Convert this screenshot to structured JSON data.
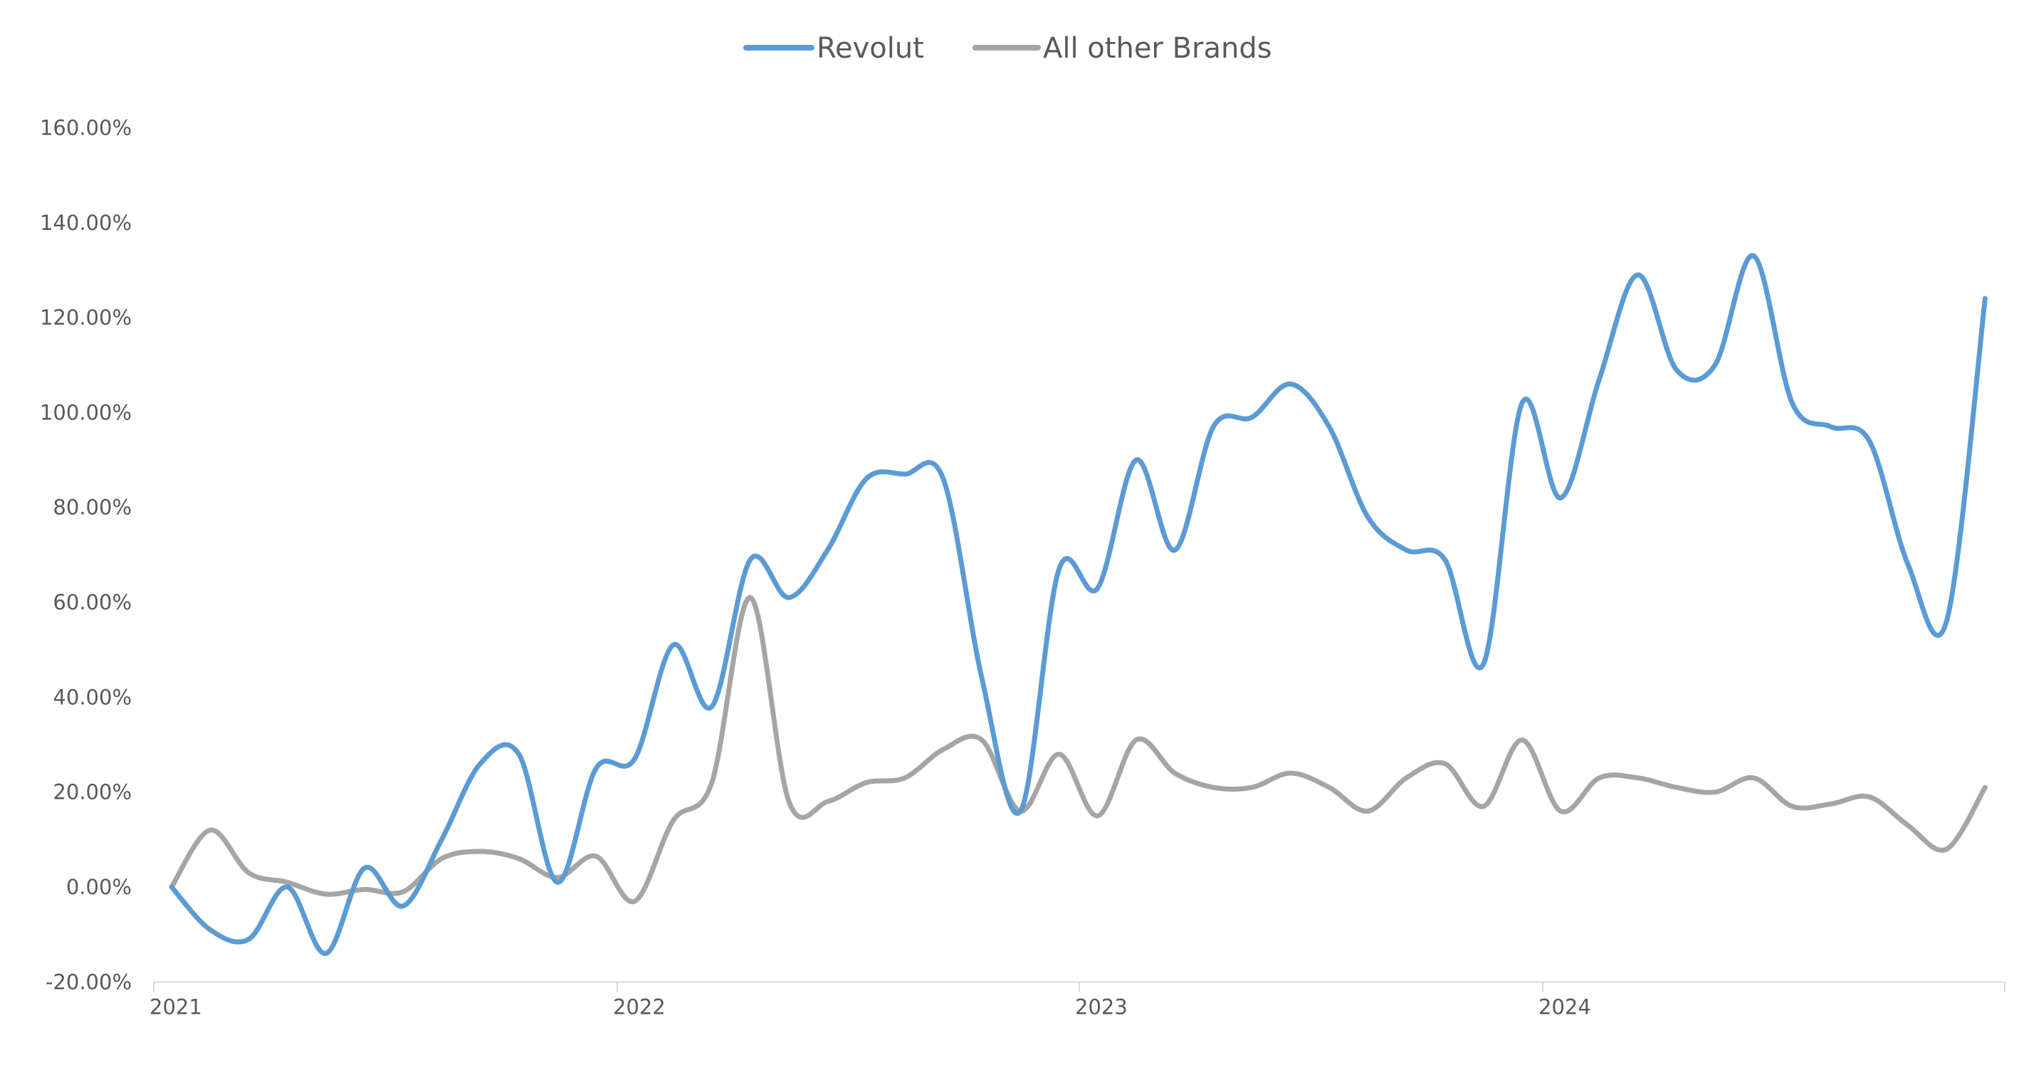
{
  "chart_data": {
    "type": "line",
    "title": "",
    "xlabel": "",
    "ylabel": "",
    "legend_position": "top",
    "grid": false,
    "ylim": [
      -20,
      160
    ],
    "y_ticks": [
      "-20.00%",
      "0.00%",
      "20.00%",
      "40.00%",
      "60.00%",
      "80.00%",
      "100.00%",
      "120.00%",
      "140.00%",
      "160.00%"
    ],
    "x_ticks": [
      "2021",
      "2022",
      "2023",
      "2024"
    ],
    "x_start": "2021-01",
    "x_frequency": "monthly",
    "series": [
      {
        "name": "Revolut",
        "color": "#5B9BD5",
        "values": [
          0,
          -9,
          -11,
          0,
          -14,
          4,
          -4,
          10,
          26,
          28,
          1,
          25,
          27,
          51,
          38,
          69,
          61,
          71,
          86,
          87,
          86,
          44,
          16,
          67,
          63,
          90,
          71,
          97,
          99,
          106,
          97,
          78,
          71,
          69,
          47,
          102,
          82,
          107,
          129,
          109,
          110,
          133,
          102,
          97,
          94,
          68,
          56,
          124
        ]
      },
      {
        "name": "All other Brands",
        "color": "#A5A5A5",
        "values": [
          0,
          12,
          3,
          1,
          -1.5,
          -0.5,
          -1,
          6,
          7.5,
          6,
          2,
          6.5,
          -3,
          14,
          22,
          61,
          18,
          18,
          22,
          23,
          29,
          31,
          16,
          28,
          15,
          31,
          24,
          21,
          21,
          24,
          21,
          16,
          23,
          26,
          17,
          31,
          16,
          23,
          23,
          21,
          20,
          23,
          17,
          17.5,
          19,
          13,
          8,
          21
        ]
      }
    ]
  }
}
